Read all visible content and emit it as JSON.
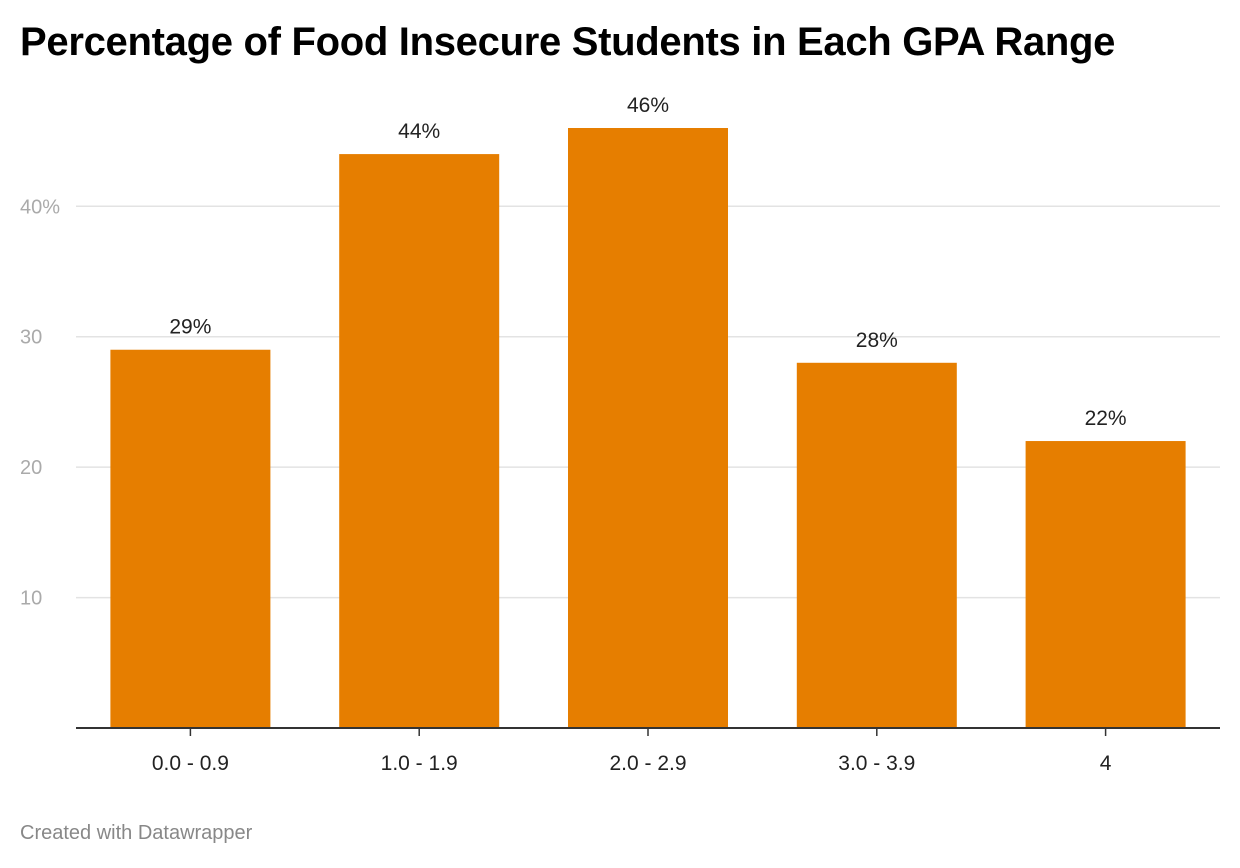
{
  "chart_data": {
    "type": "bar",
    "title": "Percentage of Food Insecure Students in Each GPA Range",
    "xlabel": "",
    "ylabel": "",
    "categories": [
      "0.0 - 0.9",
      "1.0 - 1.9",
      "2.0 - 2.9",
      "3.0 - 3.9",
      "4"
    ],
    "values": [
      29,
      44,
      46,
      28,
      22
    ],
    "value_labels": [
      "29%",
      "44%",
      "46%",
      "28%",
      "22%"
    ],
    "ylim": [
      0,
      46
    ],
    "yticks": [
      10,
      20,
      30,
      40
    ],
    "ytick_labels": [
      "10",
      "20",
      "30",
      "40%"
    ],
    "grid": true,
    "legend": "none",
    "bar_color": "#e67e00"
  },
  "footer": {
    "credit": "Created with Datawrapper"
  }
}
